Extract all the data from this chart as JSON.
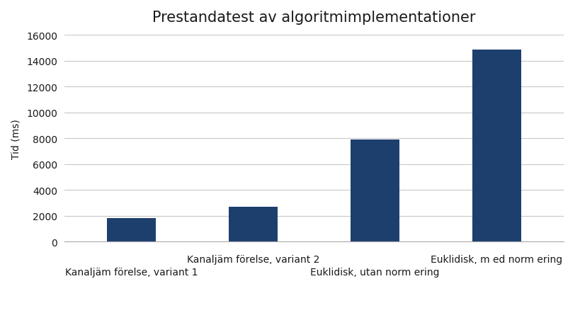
{
  "title": "Prestandatest av algoritmimplementationer",
  "categories": [
    "Kanaljäm förelse, variant 1",
    "Kanaljäm förelse, variant 2",
    "Euklidisk, utan norm ering",
    "Euklidisk, m ed norm ering"
  ],
  "values": [
    1850,
    2700,
    7900,
    14900
  ],
  "bar_color": "#1C3F6E",
  "ylabel": "Tid (ms)",
  "ylim": [
    0,
    16000
  ],
  "yticks": [
    0,
    2000,
    4000,
    6000,
    8000,
    10000,
    12000,
    14000,
    16000
  ],
  "background_color": "#ffffff",
  "title_fontsize": 15,
  "label_fontsize": 10,
  "tick_fontsize": 10,
  "title_color": "#1a1a1a",
  "text_color": "#1a1a1a",
  "grid_color": "#c8c8c8",
  "bar_width": 0.4,
  "xlim": [
    -0.55,
    3.55
  ]
}
